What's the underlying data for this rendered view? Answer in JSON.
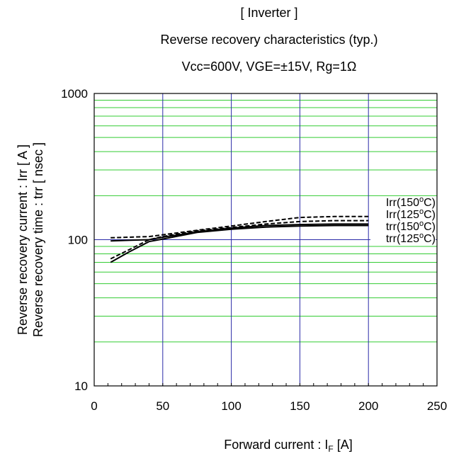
{
  "chart_data": {
    "type": "line",
    "title_lines": [
      "[ Inverter ]",
      "Reverse recovery characteristics  (typ.)",
      "Vcc=600V,  VGE=±15V,  Rg=1Ω"
    ],
    "xlabel": {
      "main": "Forward current : I",
      "sub": "F",
      "tail": " [A]"
    },
    "ylabel_lines": [
      "Reverse recovery current :  Irr  [ A ]",
      "Reverse recovery time :  trr  [ nsec ]"
    ],
    "xlim": [
      0,
      250
    ],
    "ylim": [
      10,
      1000
    ],
    "yscale": "log",
    "x_ticks": [
      0,
      50,
      100,
      150,
      200,
      250
    ],
    "x_tick_labels": [
      "0",
      "50",
      "100",
      "150",
      "200",
      "250"
    ],
    "y_ticks": [
      10,
      100,
      1000
    ],
    "y_tick_labels": [
      "10",
      "100",
      "1000"
    ],
    "grid": true,
    "colors": {
      "major_grid": "#2a2aa8",
      "minor_grid": "#33cc33",
      "line": "#000000"
    },
    "series": [
      {
        "name": "Irr(150°C)",
        "label": {
          "base": "Irr(150",
          "deg": "o",
          "unit": "C)"
        },
        "style": "dashed",
        "x": [
          12,
          25,
          40,
          50,
          75,
          100,
          125,
          150,
          175,
          200
        ],
        "y": [
          103,
          104,
          105,
          108,
          116,
          124,
          133,
          142,
          144,
          144
        ]
      },
      {
        "name": "Irr(125°C)",
        "label": {
          "base": "Irr(125",
          "deg": "o",
          "unit": "C)"
        },
        "style": "solid",
        "x": [
          12,
          25,
          40,
          50,
          75,
          100,
          125,
          150,
          175,
          200
        ],
        "y": [
          98,
          99,
          100,
          104,
          113,
          120,
          125,
          127,
          128,
          128
        ]
      },
      {
        "name": "trr(150°C)",
        "label": {
          "base": "trr(150",
          "deg": "o",
          "unit": "C)"
        },
        "style": "dashed",
        "x": [
          12,
          25,
          40,
          50,
          75,
          100,
          125,
          150,
          175,
          200
        ],
        "y": [
          74,
          85,
          100,
          105,
          115,
          121,
          128,
          133,
          135,
          135
        ]
      },
      {
        "name": "trr(125°C)",
        "label": {
          "base": "trr(125",
          "deg": "o",
          "unit": "C)"
        },
        "style": "solid",
        "x": [
          12,
          25,
          40,
          50,
          75,
          100,
          125,
          150,
          175,
          200
        ],
        "y": [
          70,
          82,
          97,
          101,
          112,
          118,
          122,
          124,
          125,
          125
        ]
      }
    ]
  }
}
